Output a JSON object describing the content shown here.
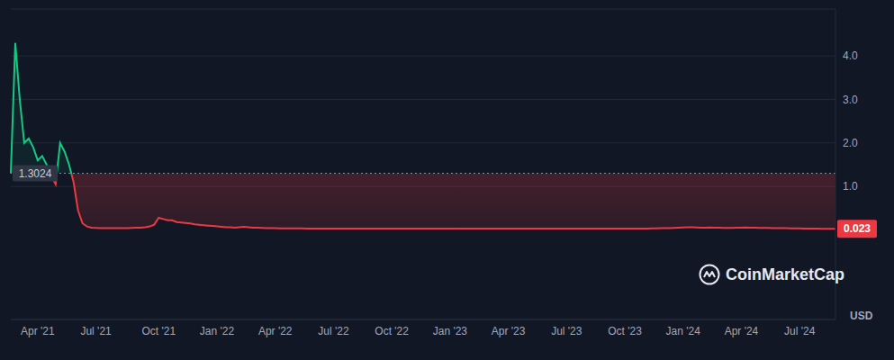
{
  "chart_data": {
    "type": "area",
    "categories": [
      null,
      null,
      null,
      null,
      null,
      null,
      "Apr '21",
      null,
      null,
      null,
      null,
      null,
      null,
      null,
      null,
      null,
      null,
      null,
      null,
      "Jul '21",
      null,
      null,
      null,
      null,
      null,
      null,
      null,
      null,
      null,
      null,
      null,
      null,
      null,
      "Oct '21",
      null,
      null,
      null,
      null,
      null,
      null,
      null,
      null,
      null,
      null,
      null,
      null,
      "Jan '22",
      null,
      null,
      null,
      null,
      null,
      null,
      null,
      null,
      null,
      null,
      null,
      null,
      "Apr '22",
      null,
      null,
      null,
      null,
      null,
      null,
      null,
      null,
      null,
      null,
      null,
      null,
      "Jul '22",
      null,
      null,
      null,
      null,
      null,
      null,
      null,
      null,
      null,
      null,
      null,
      null,
      "Oct '22",
      null,
      null,
      null,
      null,
      null,
      null,
      null,
      null,
      null,
      null,
      null,
      null,
      "Jan '23",
      null,
      null,
      null,
      null,
      null,
      null,
      null,
      null,
      null,
      null,
      null,
      null,
      "Apr '23",
      null,
      null,
      null,
      null,
      null,
      null,
      null,
      null,
      null,
      null,
      null,
      null,
      "Jul '23",
      null,
      null,
      null,
      null,
      null,
      null,
      null,
      null,
      null,
      null,
      null,
      null,
      "Oct '23",
      null,
      null,
      null,
      null,
      null,
      null,
      null,
      null,
      null,
      null,
      null,
      null,
      "Jan '24",
      null,
      null,
      null,
      null,
      null,
      null,
      null,
      null,
      null,
      null,
      null,
      null,
      "Apr '24",
      null,
      null,
      null,
      null,
      null,
      null,
      null,
      null,
      null,
      null,
      null,
      null,
      "Jul '24",
      null,
      null,
      null,
      null,
      null,
      null,
      null,
      null
    ],
    "values": [
      1.3,
      4.3,
      3,
      2,
      2.1,
      1.9,
      1.6,
      1.7,
      1.5,
      1.25,
      1.05,
      2,
      1.8,
      1.5,
      1.1,
      0.45,
      0.15,
      0.08,
      0.05,
      0.045,
      0.04,
      0.04,
      0.04,
      0.04,
      0.04,
      0.04,
      0.04,
      0.045,
      0.05,
      0.05,
      0.06,
      0.08,
      0.12,
      0.28,
      0.25,
      0.22,
      0.22,
      0.18,
      0.17,
      0.16,
      0.15,
      0.13,
      0.12,
      0.11,
      0.1,
      0.09,
      0.08,
      0.07,
      0.06,
      0.06,
      0.05,
      0.06,
      0.07,
      0.06,
      0.05,
      0.05,
      0.045,
      0.04,
      0.04,
      0.04,
      0.035,
      0.035,
      0.035,
      0.035,
      0.035,
      0.035,
      0.03,
      0.03,
      0.03,
      0.03,
      0.03,
      0.03,
      0.03,
      0.03,
      0.03,
      0.03,
      0.03,
      0.03,
      0.03,
      0.03,
      0.03,
      0.03,
      0.03,
      0.03,
      0.03,
      0.03,
      0.03,
      0.03,
      0.03,
      0.03,
      0.03,
      0.03,
      0.028,
      0.03,
      0.03,
      0.03,
      0.03,
      0.028,
      0.03,
      0.03,
      0.03,
      0.03,
      0.03,
      0.03,
      0.03,
      0.03,
      0.03,
      0.03,
      0.03,
      0.03,
      0.03,
      0.03,
      0.028,
      0.028,
      0.03,
      0.03,
      0.03,
      0.03,
      0.03,
      0.03,
      0.03,
      0.03,
      0.03,
      0.03,
      0.03,
      0.03,
      0.03,
      0.03,
      0.03,
      0.03,
      0.03,
      0.03,
      0.03,
      0.03,
      0.03,
      0.03,
      0.03,
      0.03,
      0.03,
      0.03,
      0.03,
      0.03,
      0.03,
      0.035,
      0.035,
      0.04,
      0.04,
      0.04,
      0.045,
      0.05,
      0.055,
      0.06,
      0.06,
      0.055,
      0.05,
      0.05,
      0.055,
      0.05,
      0.05,
      0.045,
      0.045,
      0.045,
      0.05,
      0.05,
      0.055,
      0.05,
      0.05,
      0.045,
      0.045,
      0.045,
      0.04,
      0.04,
      0.04,
      0.04,
      0.035,
      0.035,
      0.035,
      0.03,
      0.03,
      0.03,
      0.028,
      0.027,
      0.025,
      0.024,
      0.023
    ],
    "color": "#ea3943",
    "ylim": [
      -2.06,
      5.08
    ],
    "yticks": [
      {
        "value": 1,
        "label": "1.0"
      },
      {
        "value": 2,
        "label": "2.0"
      },
      {
        "value": 3,
        "label": "3.0"
      },
      {
        "value": 4,
        "label": "4.0"
      }
    ],
    "grid": true,
    "baseline": 1.3024,
    "current_price": 0.023,
    "ylabel": "USD",
    "watermark": "CoinMarketCap"
  }
}
